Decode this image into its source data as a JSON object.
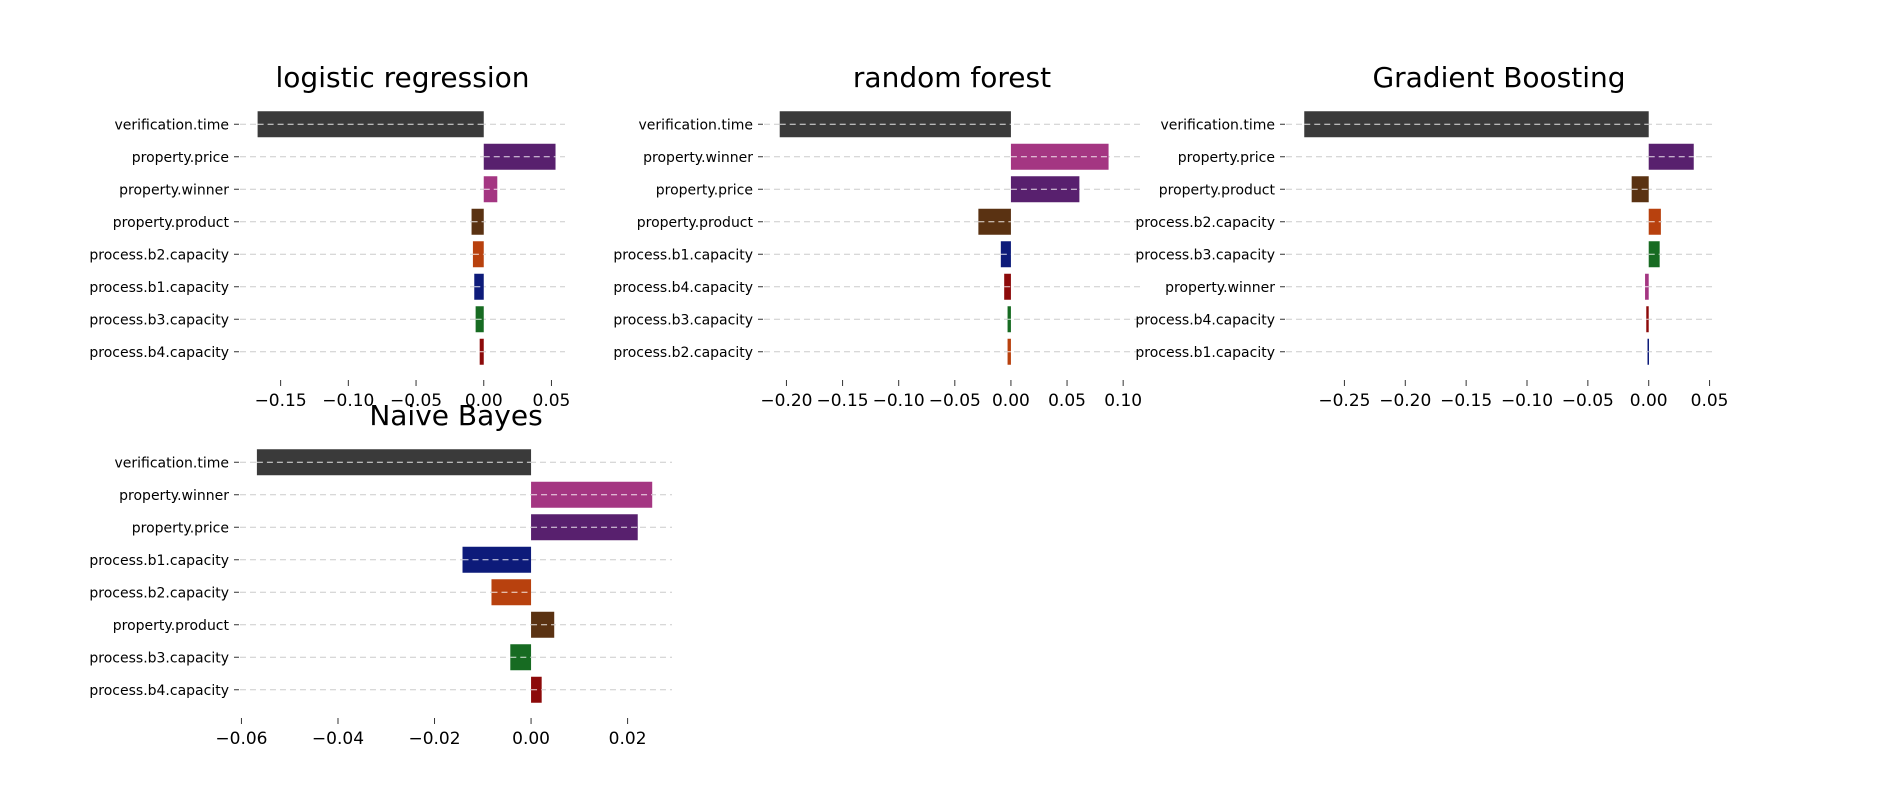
{
  "chart_data": [
    {
      "type": "bar",
      "orientation": "horizontal",
      "title": "logistic regression",
      "categories": [
        "verification.time",
        "property.price",
        "property.winner",
        "property.product",
        "process.b2.capacity",
        "process.b1.capacity",
        "process.b3.capacity",
        "process.b4.capacity"
      ],
      "values": [
        -0.167,
        0.053,
        0.01,
        -0.009,
        -0.008,
        -0.007,
        -0.006,
        -0.003
      ],
      "xlim": [
        -0.18,
        0.06
      ],
      "xticks": [
        -0.15,
        -0.1,
        -0.05,
        0.0,
        0.05
      ],
      "xtick_labels": [
        "−0.15",
        "−0.10",
        "−0.05",
        "0.00",
        "0.05"
      ],
      "grid": "horizontal dashed"
    },
    {
      "type": "bar",
      "orientation": "horizontal",
      "title": "random forest",
      "categories": [
        "verification.time",
        "property.winner",
        "property.price",
        "property.product",
        "process.b1.capacity",
        "process.b4.capacity",
        "process.b3.capacity",
        "process.b2.capacity"
      ],
      "values": [
        -0.206,
        0.087,
        0.061,
        -0.029,
        -0.009,
        -0.006,
        -0.003,
        -0.003
      ],
      "xlim": [
        -0.22,
        0.115
      ],
      "xticks": [
        -0.2,
        -0.15,
        -0.1,
        -0.05,
        0.0,
        0.05,
        0.1
      ],
      "xtick_labels": [
        "−0.20",
        "−0.15",
        "−0.10",
        "−0.05",
        "0.00",
        "0.05",
        "0.10"
      ],
      "grid": "horizontal dashed"
    },
    {
      "type": "bar",
      "orientation": "horizontal",
      "title": "Gradient Boosting",
      "categories": [
        "verification.time",
        "property.price",
        "property.product",
        "process.b2.capacity",
        "process.b3.capacity",
        "property.winner",
        "process.b4.capacity",
        "process.b1.capacity"
      ],
      "values": [
        -0.283,
        0.037,
        -0.014,
        0.01,
        0.009,
        -0.003,
        -0.002,
        -0.001
      ],
      "xlim": [
        -0.298,
        0.052
      ],
      "xticks": [
        -0.25,
        -0.2,
        -0.15,
        -0.1,
        -0.05,
        0.0,
        0.05
      ],
      "xtick_labels": [
        "−0.25",
        "−0.20",
        "−0.15",
        "−0.10",
        "−0.05",
        "0.00",
        "0.05"
      ],
      "grid": "horizontal dashed"
    },
    {
      "type": "bar",
      "orientation": "horizontal",
      "title": "Naive Bayes",
      "categories": [
        "verification.time",
        "property.winner",
        "property.price",
        "process.b1.capacity",
        "process.b2.capacity",
        "property.product",
        "process.b3.capacity",
        "process.b4.capacity"
      ],
      "values": [
        -0.0568,
        0.0251,
        0.0221,
        -0.0142,
        -0.0082,
        0.0048,
        -0.0043,
        0.0022
      ],
      "xlim": [
        -0.0603,
        0.0292
      ],
      "xticks": [
        -0.06,
        -0.04,
        -0.02,
        0.0,
        0.02
      ],
      "xtick_labels": [
        "−0.06",
        "−0.04",
        "−0.02",
        "0.00",
        "0.02"
      ],
      "grid": "horizontal dashed"
    }
  ],
  "feature_colors": {
    "verification.time": "#3a3a3a",
    "property.price": "#58206e",
    "property.winner": "#a43682",
    "property.product": "#5a3212",
    "process.b1.capacity": "#0d1b7a",
    "process.b2.capacity": "#b8410e",
    "process.b3.capacity": "#176b22",
    "process.b4.capacity": "#8c0a0a"
  }
}
